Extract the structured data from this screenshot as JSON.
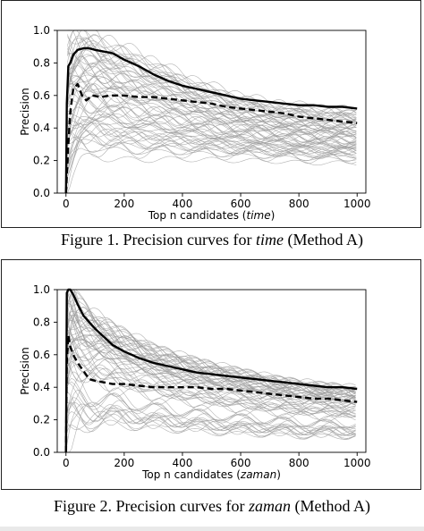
{
  "figures": [
    {
      "caption_prefix": "Figure 1. Precision curves for ",
      "caption_term": "time",
      "caption_suffix": " (Method A)"
    },
    {
      "caption_prefix": "Figure 2. Precision curves for ",
      "caption_term": "zaman",
      "caption_suffix": " (Method A)"
    }
  ],
  "chart_data": [
    {
      "type": "line",
      "xlabel_prefix": "Top n candidates (",
      "xlabel_term": "time",
      "xlabel_suffix": ")",
      "ylabel": "Precision",
      "xlim": [
        -30,
        1030
      ],
      "ylim": [
        0.0,
        1.0
      ],
      "xticks": [
        0,
        200,
        400,
        600,
        800,
        1000
      ],
      "yticks": [
        0.0,
        0.2,
        0.4,
        0.6,
        0.8,
        1.0
      ],
      "grid": false,
      "colors": {
        "background_curves": "#9a9a9a",
        "highlight": "#000000"
      },
      "background_band": {
        "x": [
          5,
          20,
          50,
          100,
          150,
          200,
          300,
          400,
          500,
          600,
          700,
          800,
          900,
          1000
        ],
        "upper": [
          1.0,
          1.0,
          1.0,
          0.98,
          0.94,
          0.9,
          0.82,
          0.73,
          0.66,
          0.6,
          0.56,
          0.54,
          0.52,
          0.51
        ],
        "lower": [
          0.0,
          0.05,
          0.13,
          0.17,
          0.16,
          0.15,
          0.16,
          0.17,
          0.17,
          0.17,
          0.17,
          0.16,
          0.16,
          0.16
        ]
      },
      "series": [
        {
          "style": "solid",
          "x": [
            0,
            3,
            8,
            15,
            25,
            40,
            60,
            80,
            100,
            130,
            160,
            200,
            250,
            300,
            350,
            400,
            450,
            500,
            550,
            600,
            650,
            700,
            750,
            800,
            850,
            900,
            950,
            1000
          ],
          "y": [
            0.0,
            0.55,
            0.78,
            0.8,
            0.85,
            0.88,
            0.89,
            0.89,
            0.88,
            0.87,
            0.86,
            0.82,
            0.78,
            0.73,
            0.69,
            0.66,
            0.64,
            0.62,
            0.6,
            0.58,
            0.57,
            0.56,
            0.55,
            0.54,
            0.54,
            0.53,
            0.53,
            0.52
          ]
        },
        {
          "style": "dashed",
          "x": [
            0,
            3,
            8,
            15,
            25,
            40,
            55,
            70,
            90,
            120,
            150,
            200,
            250,
            300,
            350,
            400,
            450,
            500,
            550,
            600,
            650,
            700,
            750,
            800,
            850,
            900,
            950,
            1000
          ],
          "y": [
            0.0,
            0.1,
            0.3,
            0.5,
            0.64,
            0.67,
            0.6,
            0.57,
            0.6,
            0.59,
            0.6,
            0.6,
            0.59,
            0.59,
            0.58,
            0.57,
            0.56,
            0.55,
            0.53,
            0.52,
            0.51,
            0.5,
            0.49,
            0.47,
            0.46,
            0.45,
            0.44,
            0.43
          ]
        }
      ]
    },
    {
      "type": "line",
      "xlabel_prefix": "Top n candidates (",
      "xlabel_term": "zaman",
      "xlabel_suffix": ")",
      "ylabel": "Precision",
      "xlim": [
        -30,
        1030
      ],
      "ylim": [
        0.0,
        1.0
      ],
      "xticks": [
        0,
        200,
        400,
        600,
        800,
        1000
      ],
      "yticks": [
        0.0,
        0.2,
        0.4,
        0.6,
        0.8,
        1.0
      ],
      "grid": false,
      "colors": {
        "background_curves": "#9a9a9a",
        "highlight": "#000000"
      },
      "background_band": {
        "x": [
          3,
          20,
          50,
          100,
          150,
          200,
          300,
          400,
          500,
          600,
          700,
          800,
          900,
          1000
        ],
        "upper": [
          1.0,
          1.0,
          0.92,
          0.85,
          0.8,
          0.75,
          0.66,
          0.6,
          0.55,
          0.51,
          0.47,
          0.44,
          0.42,
          0.4
        ],
        "lower": [
          0.0,
          0.05,
          0.1,
          0.14,
          0.14,
          0.13,
          0.12,
          0.11,
          0.1,
          0.09,
          0.09,
          0.08,
          0.08,
          0.08
        ]
      },
      "series": [
        {
          "style": "solid",
          "x": [
            0,
            3,
            8,
            15,
            25,
            40,
            60,
            80,
            100,
            130,
            160,
            200,
            250,
            300,
            350,
            400,
            450,
            500,
            550,
            600,
            650,
            700,
            750,
            800,
            850,
            900,
            950,
            1000
          ],
          "y": [
            0.0,
            0.98,
            1.0,
            1.0,
            0.97,
            0.91,
            0.84,
            0.8,
            0.76,
            0.71,
            0.66,
            0.62,
            0.58,
            0.55,
            0.53,
            0.51,
            0.49,
            0.48,
            0.47,
            0.46,
            0.45,
            0.44,
            0.43,
            0.42,
            0.41,
            0.4,
            0.4,
            0.39
          ]
        },
        {
          "style": "dashed",
          "x": [
            0,
            3,
            8,
            15,
            25,
            40,
            60,
            80,
            100,
            130,
            160,
            200,
            250,
            300,
            350,
            400,
            450,
            500,
            550,
            600,
            650,
            700,
            750,
            800,
            850,
            900,
            950,
            1000
          ],
          "y": [
            0.0,
            0.55,
            0.72,
            0.65,
            0.6,
            0.55,
            0.5,
            0.45,
            0.44,
            0.43,
            0.42,
            0.42,
            0.41,
            0.4,
            0.4,
            0.4,
            0.4,
            0.39,
            0.39,
            0.38,
            0.37,
            0.36,
            0.35,
            0.34,
            0.33,
            0.33,
            0.32,
            0.31
          ]
        }
      ]
    }
  ]
}
